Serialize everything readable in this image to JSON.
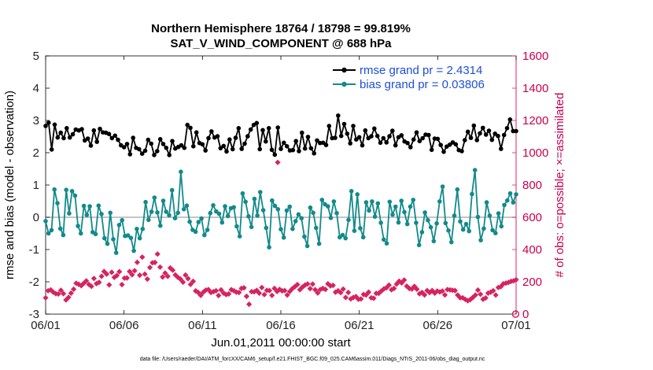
{
  "chart_data": {
    "type": "line",
    "title": [
      "Northern Hemisphere 18764 / 18798 = 99.819%",
      "SAT_V_WIND_COMPONENT @ 688 hPa"
    ],
    "xlabel": "Jun.01,2011 00:00:00 start",
    "ylabel": "rmse and bias (model - observation)",
    "ylabel_right": "# of obs: o=possible; ×=assimilated",
    "footer": "data file: /Users/raeder/DAI/ATM_forcXX/CAM6_setup/f.e21.FHIST_BGC.f09_025.CAM6assim.011/Diags_NTrS_2011-06/obs_diag_output.nc",
    "x_ticks": [
      "06/01",
      "06/06",
      "06/11",
      "06/16",
      "06/21",
      "06/26",
      "07/01"
    ],
    "ylim": [
      -3,
      5
    ],
    "y_ticks": [
      "-3",
      "-2",
      "-1",
      "0",
      "1",
      "2",
      "3",
      "4",
      "5"
    ],
    "ylim_right": [
      0,
      1600
    ],
    "y_ticks_right": [
      "0",
      "200",
      "400",
      "600",
      "800",
      "1000",
      "1200",
      "1400",
      "1600"
    ],
    "legend_position": "top-right",
    "colors": {
      "rmse": "#000000",
      "bias": "#128a8a",
      "obs": "#d6245f",
      "zero_line": "#b0b0b0"
    },
    "series": [
      {
        "name": "rmse grand pr = 2.4314",
        "values": [
          2.83,
          2.93,
          2.1,
          2.87,
          2.47,
          2.62,
          2.45,
          2.76,
          2.47,
          2.57,
          2.72,
          2.69,
          2.73,
          2.38,
          2.44,
          2.22,
          2.69,
          2.34,
          2.74,
          2.63,
          2.62,
          2.58,
          2.45,
          2.53,
          2.4,
          2.23,
          2.17,
          2.27,
          1.95,
          2.46,
          2.15,
          2.11,
          1.97,
          2.06,
          2.4,
          2.28,
          1.93,
          2.05,
          2.42,
          2.27,
          2.15,
          1.93,
          2.36,
          2.13,
          2.18,
          2.23,
          2.15,
          2.86,
          2.77,
          2.2,
          2.63,
          2.3,
          2.26,
          2.07,
          2.45,
          2.66,
          2.47,
          2.51,
          2.14,
          2.21,
          2.04,
          2.41,
          2.11,
          2.46,
          2.76,
          2.12,
          2.28,
          2.51,
          2.72,
          2.86,
          2.92,
          2.11,
          2.7,
          2.35,
          2.76,
          2.09,
          1.94,
          2.78,
          2.12,
          2.31,
          2.2,
          2.07,
          2.08,
          2.36,
          2.05,
          2.62,
          2.13,
          2.49,
          2.14,
          1.98,
          2.38,
          2.3,
          2.31,
          2.24,
          2.83,
          2.45,
          2.46,
          3.15,
          2.52,
          2.89,
          2.59,
          2.29,
          2.83,
          2.41,
          2.48,
          2.23,
          2.69,
          2.45,
          2.51,
          2.75,
          2.52,
          2.31,
          2.45,
          2.32,
          2.51,
          2.68,
          2.23,
          2.48,
          2.54,
          2.35,
          2.3,
          2.17,
          2.41,
          2.63,
          2.36,
          2.45,
          2.56,
          2.55,
          2.09,
          2.44,
          2.43,
          2.24,
          2.03,
          2.19,
          2.25,
          2.32,
          2.26,
          2.08,
          2.05,
          2.39,
          2.65,
          2.46,
          2.84,
          2.39,
          2.6,
          2.77,
          2.56,
          2.68,
          2.4,
          2.59,
          2.52,
          2.12,
          2.55,
          2.76,
          3.03,
          2.67,
          2.67
        ]
      },
      {
        "name": "bias grand pr = 0.03806",
        "values": [
          -0.12,
          -0.5,
          -0.4,
          0.86,
          0.44,
          -0.35,
          -0.55,
          0.85,
          0.12,
          0.81,
          0.67,
          -0.27,
          -0.5,
          0.35,
          0.07,
          0.34,
          -0.46,
          -0.52,
          0.36,
          0.1,
          -0.65,
          -0.82,
          0.14,
          -0.68,
          -1.1,
          -0.24,
          -0.09,
          -0.58,
          -0.56,
          -0.64,
          -1.04,
          -0.36,
          -0.65,
          -0.36,
          0.47,
          -0.08,
          0.17,
          0.61,
          0.15,
          -0.26,
          0.51,
          0.17,
          0.06,
          0.84,
          -0.03,
          0.14,
          1.41,
          0.25,
          0.36,
          -0.14,
          -0.39,
          -0.45,
          -0.15,
          -0.04,
          -0.55,
          -0.39,
          0.13,
          0.37,
          0.18,
          0.11,
          -0.16,
          0.34,
          0.04,
          0.28,
          0.31,
          -0.28,
          -0.59,
          0.74,
          0.48,
          0.03,
          -0.3,
          0.57,
          0.05,
          0.78,
          0.22,
          -0.33,
          -0.93,
          0.52,
          0.35,
          0.25,
          -0.37,
          -0.63,
          0.21,
          0.33,
          -0.36,
          -0.12,
          0.09,
          -0.03,
          -0.6,
          -0.89,
          0.3,
          0.14,
          -0.33,
          -0.82,
          0.54,
          0.4,
          0.34,
          -0.02,
          0.49,
          0.13,
          -0.62,
          -0.55,
          -0.65,
          -0.08,
          0.81,
          -0.42,
          0.71,
          -0.34,
          -0.62,
          0.46,
          0.21,
          0.49,
          0.02,
          0.43,
          -0.17,
          -0.69,
          -0.81,
          0.48,
          0.08,
          0.33,
          -0.16,
          0.51,
          0.16,
          -0.21,
          0.33,
          0.54,
          -0.17,
          -0.86,
          -0.46,
          0.15,
          -0.09,
          -0.31,
          -0.74,
          -0.19,
          0.49,
          0.95,
          -0.18,
          -0.41,
          -0.77,
          0.05,
          0.86,
          -0.13,
          -0.38,
          -0.21,
          -0.43,
          0.72,
          1.46,
          0.01,
          -0.71,
          -0.35,
          0.46,
          0.05,
          -0.4,
          -0.49,
          0.12,
          -0.28,
          0.38,
          0.52,
          0.74,
          0.46,
          0.71
        ]
      },
      {
        "name": "",
        "values": [
          101,
          145,
          150,
          136,
          127,
          125,
          148,
          127,
          88,
          104,
          130,
          154,
          191,
          185,
          176,
          191,
          206,
          184,
          172,
          221,
          189,
          197,
          234,
          264,
          248,
          181,
          259,
          228,
          239,
          263,
          183,
          223,
          224,
          264,
          244,
          269,
          321,
          241,
          353,
          248,
          217,
          289,
          318,
          320,
          372,
          291,
          230,
          254,
          234,
          286,
          272,
          243,
          228,
          217,
          198,
          242,
          220,
          184,
          203,
          144,
          134,
          116,
          136,
          149,
          152,
          134,
          139,
          145,
          115,
          150,
          130,
          121,
          125,
          151,
          145,
          136,
          134,
          159,
          163,
          110,
          61,
          139,
          138,
          147,
          130,
          165,
          121,
          147,
          146,
          116,
          159,
          140,
          153,
          144,
          146,
          118,
          140,
          157,
          170,
          183,
          151,
          168,
          180,
          187,
          158,
          186,
          151,
          131,
          152,
          159,
          153,
          188,
          175,
          178,
          136,
          145,
          133,
          155,
          103,
          134,
          94,
          103,
          109,
          92,
          94,
          122,
          118,
          136,
          101,
          98,
          129,
          129,
          143,
          156,
          163,
          180,
          151,
          159,
          186,
          204,
          193,
          211,
          173,
          159,
          155,
          172,
          154,
          126,
          134,
          119,
          146,
          133,
          146,
          130,
          143,
          137,
          143,
          119,
          152,
          150,
          148,
          146,
          118,
          101,
          101,
          91,
          83,
          90,
          103,
          118,
          149,
          123,
          92,
          100,
          130,
          136,
          145,
          118,
          165,
          170,
          188,
          192,
          196,
          203,
          206,
          213
        ]
      }
    ],
    "obs_outlier": {
      "day": 14.8,
      "value": 940
    },
    "obs_final_possible": {
      "day": 29.97,
      "value": 0
    }
  }
}
